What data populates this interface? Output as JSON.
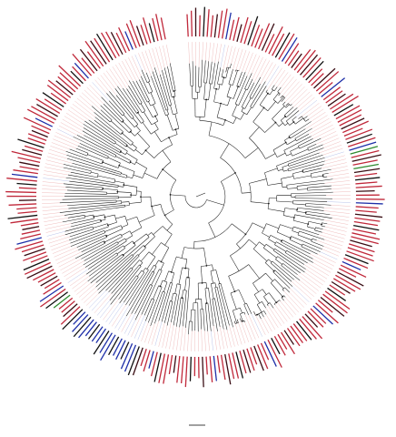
{
  "figure": {
    "type": "circular-phylogenetic-tree",
    "colors": {
      "background": "#ffffff",
      "branch": "#1a1a1a",
      "guide_red": "#e8a0a0",
      "guide_blue": "#9aa8e0",
      "label_red": "#c0283a",
      "label_dark": "#3a0d14",
      "label_black": "#111111",
      "label_blue": "#1e2fa8",
      "label_green": "#2f8a2f"
    },
    "label_color_sequence": [
      "red",
      "red",
      "dark",
      "red",
      "black",
      "red",
      "red",
      "dark",
      "red",
      "red",
      "blue",
      "red",
      "red",
      "dark",
      "red",
      "red",
      "black",
      "red",
      "red",
      "red",
      "dark",
      "red",
      "red",
      "red",
      "black",
      "red",
      "blue",
      "red",
      "red",
      "dark"
    ],
    "scale_bar": {
      "label": ""
    }
  }
}
